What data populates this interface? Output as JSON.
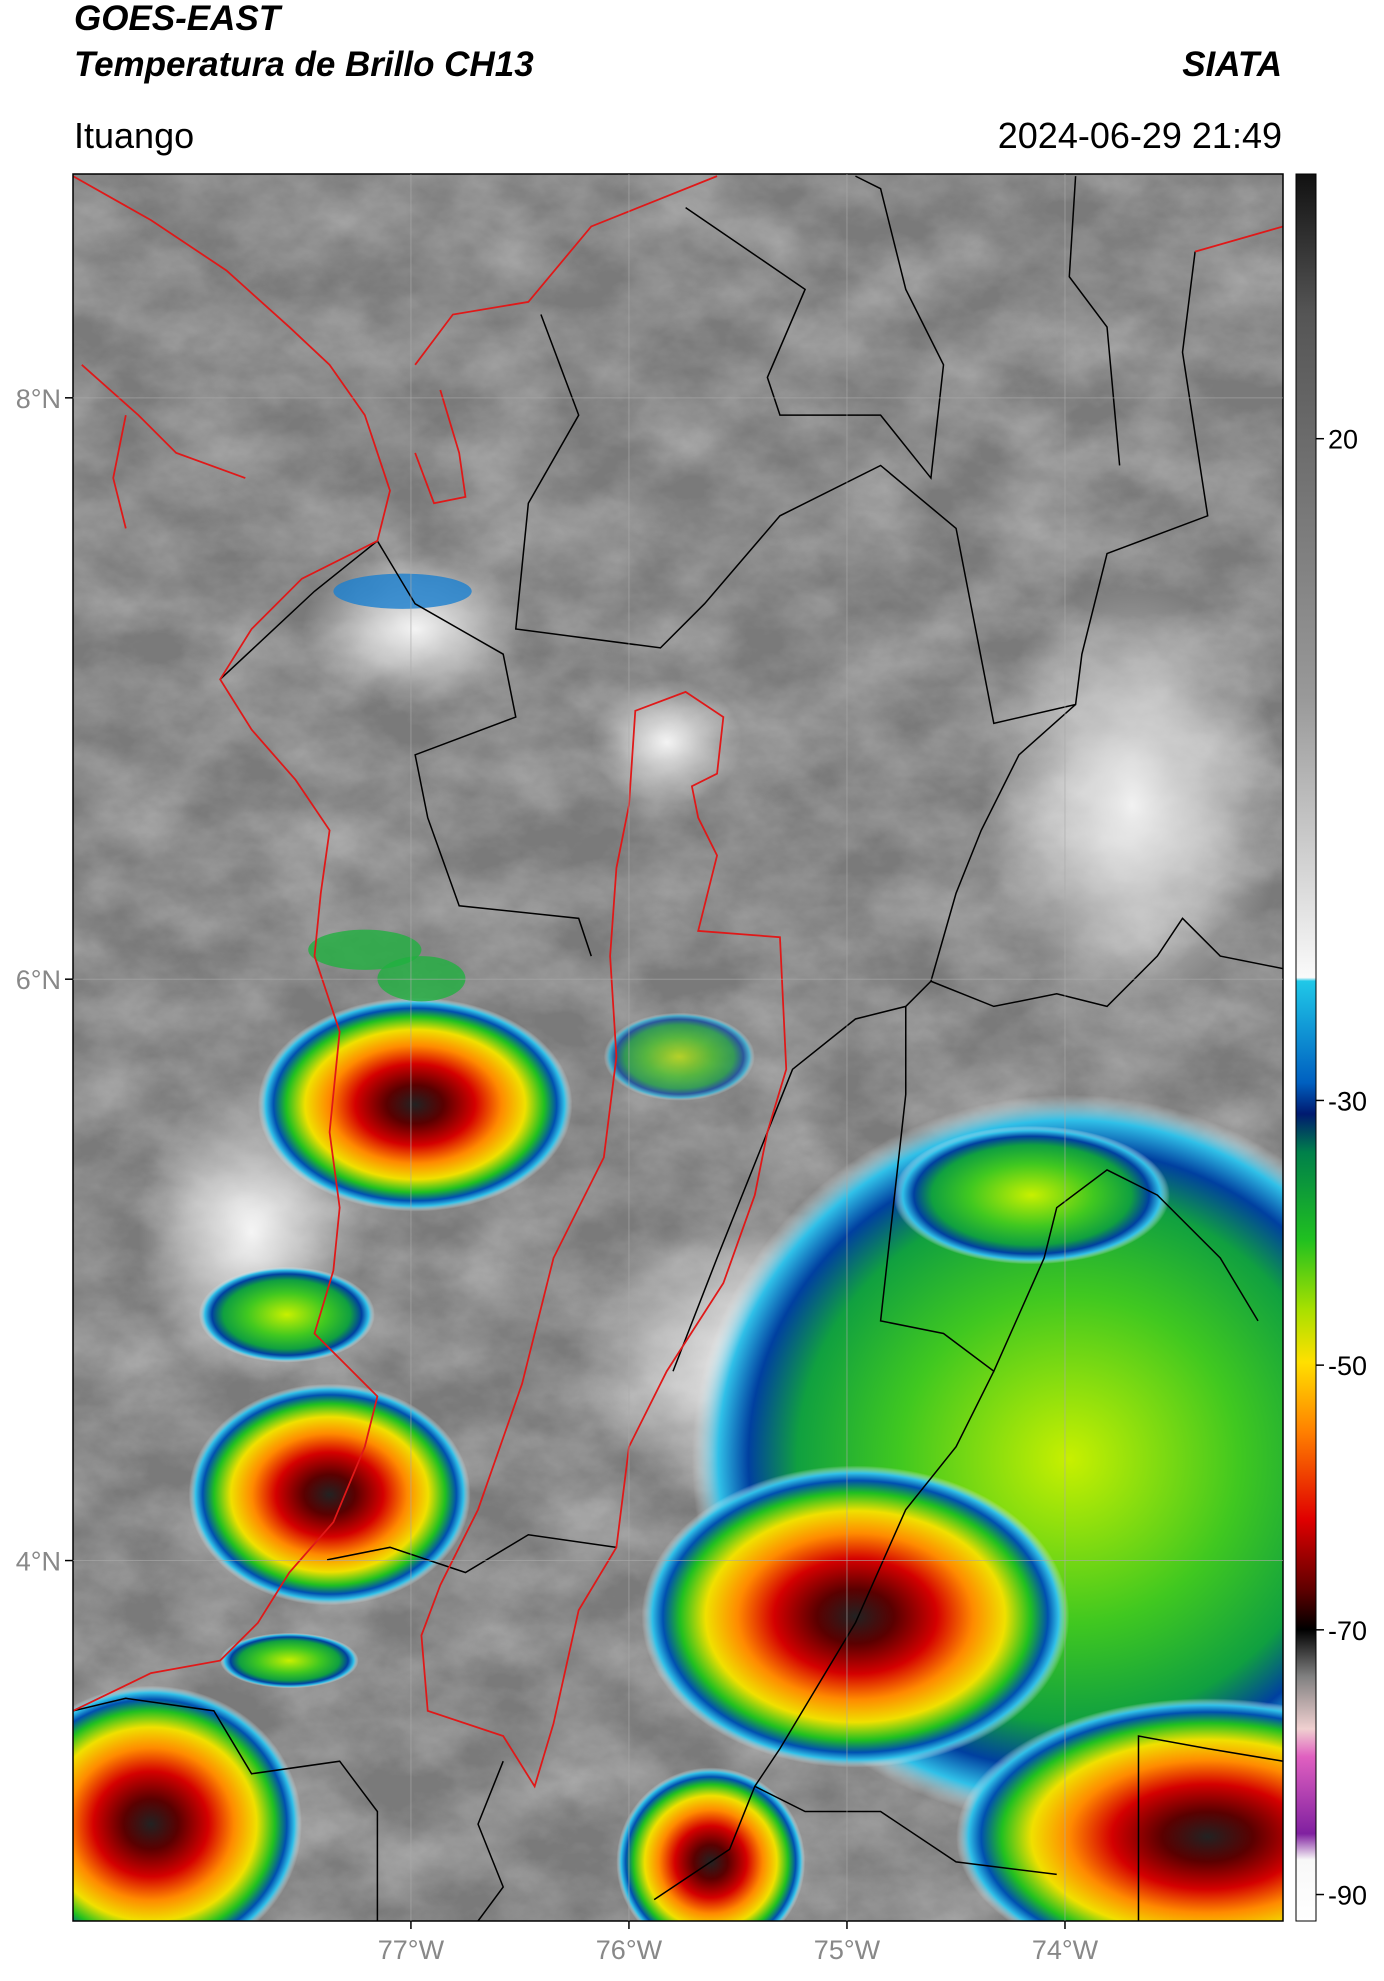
{
  "header": {
    "title": "GOES-EAST",
    "subtitle": "Temperatura de Brillo CH13",
    "brand": "SIATA",
    "location": "Ituango",
    "datetime": "2024-06-29 21:49"
  },
  "chart_data": {
    "type": "map",
    "xlim": [
      -78.55,
      -73.0
    ],
    "ylim": [
      2.76,
      8.77
    ],
    "xticks": [
      {
        "value": -77,
        "label": "77°W"
      },
      {
        "value": -76,
        "label": "76°W"
      },
      {
        "value": -75,
        "label": "75°W"
      },
      {
        "value": -74,
        "label": "74°W"
      }
    ],
    "yticks": [
      {
        "value": 8,
        "label": "8°N"
      },
      {
        "value": 6,
        "label": "6°N"
      },
      {
        "value": 4,
        "label": "4°N"
      }
    ],
    "grid": true,
    "colorbar": {
      "lim": [
        -92,
        40
      ],
      "ticks": [
        20,
        -30,
        -50,
        -70,
        -90
      ]
    }
  }
}
